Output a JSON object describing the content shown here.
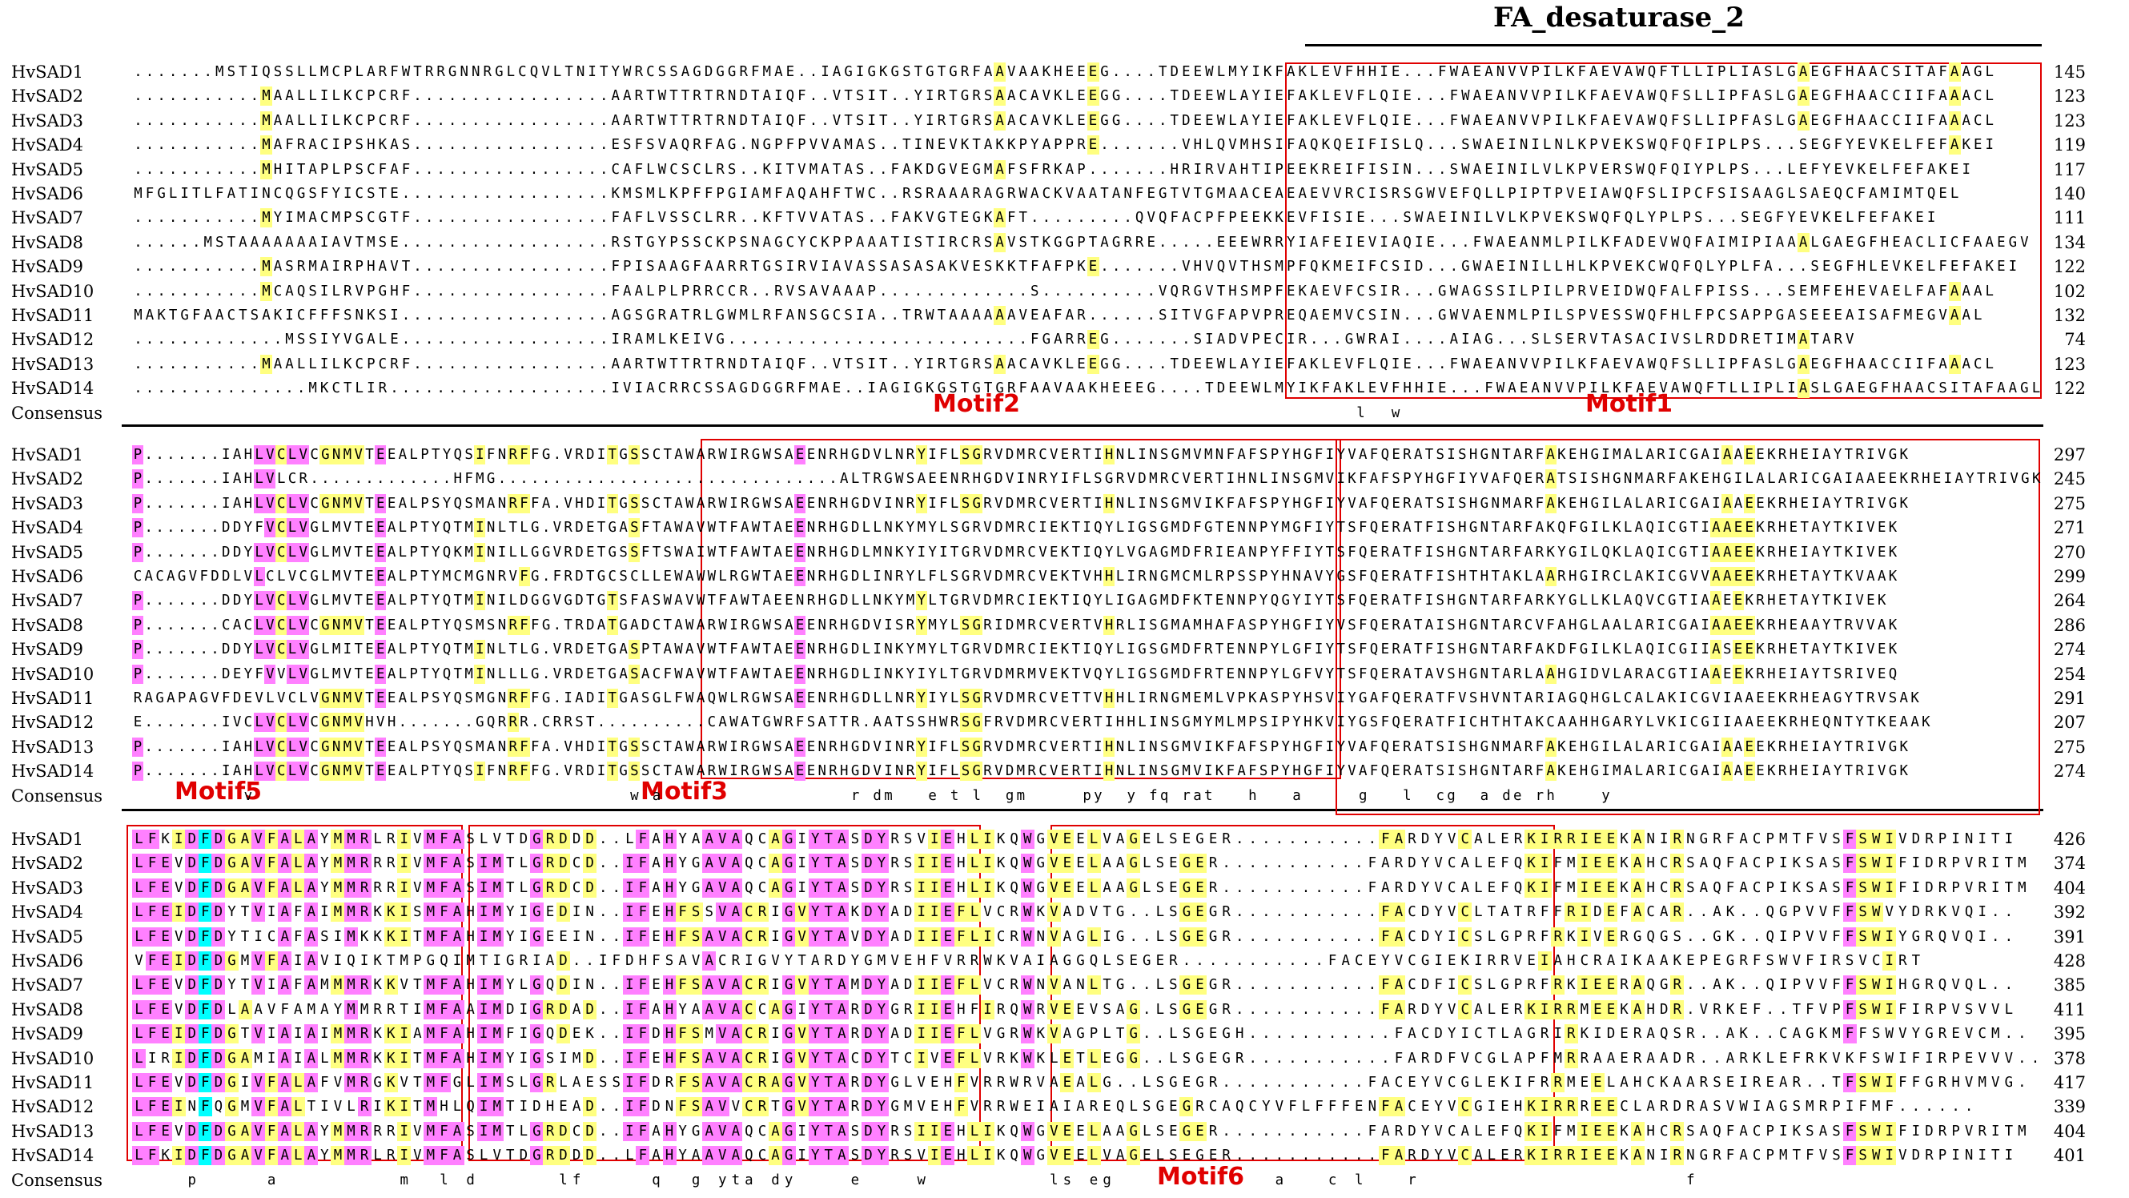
{
  "domain_label": "FA_desaturase_2",
  "consensus_label": "Consensus",
  "colors": {
    "conserved_100": "#00ffff",
    "conserved_75": "#ff80ff",
    "conserved_50": "#ffff80",
    "motif_box": "#e00000"
  },
  "blocks": [
    {
      "names": [
        "HvSAD1",
        "HvSAD2",
        "HvSAD3",
        "HvSAD4",
        "HvSAD5",
        "HvSAD6",
        "HvSAD7",
        "HvSAD8",
        "HvSAD9",
        "HvSAD10",
        "HvSAD11",
        "HvSAD12",
        "HvSAD13",
        "HvSAD14"
      ],
      "numbers": [
        "145",
        "123",
        "123",
        "119",
        "117",
        "140",
        "111",
        "134",
        "122",
        "102",
        "132",
        "74",
        "123",
        "122"
      ],
      "seqs": [
        ".......MSTIQSSLLMCPLARFWTRRGNNRGLCQVLTNITYWRCSSAGDGGRFMAE..IAGIGKGSTGTGRFAAVAAKHEEEG....TDEEWLMYIKFAKLEVFHHIE...FWAEANVVPILKFAEVAWQFTLLIPLIASLGAEGFHAACSITAFAAGL",
        "...........MAALLILKCPCRF.................AARTWTTRTRNDTAIQF..VTSIT..YIRTGRSAACAVKLEEGG....TDEEWLAYIEFAKLEVFLQIE...FWAEANVVPILKFAEVAWQFSLLIPFASLGAEGFHAACCIIFAAACL",
        "...........MAALLILKCPCRF.................AARTWTTRTRNDTAIQF..VTSIT..YIRTGRSAACAVKLEEGG....TDEEWLAYIEFAKLEVFLQIE...FWAEANVVPILKFAEVAWQFSLLIPFASLGAEGFHAACCIIFAAACL",
        "...........MAFRACIPSHKAS.................ESFSVAQRFAG.NGPFPVVAMAS..TINEVKTAKKPYAPPRE.......VHLQVMHSIFAQKQEIFISLQ...SWAEINILNLKPVEKSWQFQFIPLPS...SEGFYEVKELFEFAKEI",
        "...........MHITAPLPSCFAF.................CAFLWCSCLRS..KITVMATAS..FAKDGVEGMAFSFRKAP.......HRIRVAHTIPEEKREIFISIN...SWAEINILVLKPVERSWQFQIYPLPS...LEFYEVKELFEFAKEI",
        "MFGLITLFATINCQGSFYICSTE..................KMSMLKPFFPGIAMFAQAHFTWC..RSRAAARAGRWACKVAATANFEGTVTGMAACEAEAEVVRCISRSGWVEFQLLPIPTPVEIAWQFSLIPCFSISAAGLSAEQCFAMIMTQEL",
        "...........MYIMACMPSCGTF.................FAFLVSSCLRR..KFTVVATAS..FAKVGTEGKAFT.........QVQFACPFPEEKKEVFISIE...SWAEINILVLKPVEKSWQFQLYPLPS...SEGFYEVKELFEFAKEI",
        "......MSTAAAAAAAIAVTMSE..................RSTGYPSSCKPSNAGCYCKPPAAATISTIRCRSAVSTKGGPTAGRRE.....EEEWRRYIAFEIEVIAQIE...FWAEANMLPILKFADEVWQFAIMIPIAAALGAEGFHEACLICFAAEGV",
        "...........MASRMAIRPHAVT.................FPISAAGFAARRTGSIRVIAVASSASASAKVESKKTFAFPKE.......VHVQVTHSMPFQKMEIFCSID...GWAEINILLHLKPVEKCWQFQLYPLFA...SEGFHLEVKELFEFAKEI",
        "...........MCAQSILRVPGHF.................FAALPLPRRCCR..RVSAVAAAP.............S..........VQRGVTHSMPFEKAEVFCSIR...GWAGSSILPILPRVEIDWQFALFPISS...SEMFEHEVAELFAFAAAL",
        "MAKTGFAACTSAKICFFFSNKSI..................AGSGRATRLGWMLRFANSGCSIA..TRWTAAAAAAVEAFAR......SITVGFAPVPREQAEMVCSIN...GWVAENMLPILSPVESSWQFHLFPCSAPPGASEEEAISAFMEGVAAL",
        ".............MSSIYVGALE..................IRAMLKEIVG..........................FGARREG.......SIADVPECIR...GWRAI....AIAG...SLSERVTASACIVSLRDDRETIMATARV",
        "...........MAALLILKCPCRF.................AARTWTTRTRNDTAIQF..VTSIT..YIRTGRSAACAVKLEEGG....TDEEWLAYIEFAKLEVFLQIE...FWAEANVVPILKFAEVAWQFSLLIPFASLGAEGFHAACCIIFAAACL",
        "...............MKCTLIR...................IVIACRRCSSAGDGGRFMAE..IAGIGKGSTGTGRFAAVAAKHEEEG....TDEEWLMYIKFAKLEVFHHIE...FWAEANVVPILKFAEVAWQFTLLIPLIASLGAEGFHAACSITAFAAGL"
      ],
      "consensus": "                                                                                                         l  w                                         ",
      "motifs": [
        "Motif2",
        "Motif1"
      ]
    },
    {
      "names": [
        "HvSAD1",
        "HvSAD2",
        "HvSAD3",
        "HvSAD4",
        "HvSAD5",
        "HvSAD6",
        "HvSAD7",
        "HvSAD8",
        "HvSAD9",
        "HvSAD10",
        "HvSAD11",
        "HvSAD12",
        "HvSAD13",
        "HvSAD14"
      ],
      "numbers": [
        "297",
        "245",
        "275",
        "271",
        "270",
        "299",
        "264",
        "286",
        "274",
        "254",
        "291",
        "207",
        "275",
        "274"
      ],
      "seqs": [
        "P.......IAHLVCLVCGNMVTEEALPTYQSIFNRFFG.VRDITGSSCTAWARWIRGWSAEENRHGDVLNRYIFLSGRVDMRCVERTIHNLINSGMVMNFAFSPYHGFIYVAFQERATSISHGNTARFAKEHGIMALARICGAIAAEEKRHEIAYTRIVGK",
        "P.......IAHLVLCR.............HFMG...............................ALTRGWSAEENRHGDVINRYIFLSGRVDMRCVERTIHNLINSGMVIKFAFSPYHGFIYVAFQERATSISHGNMARFAKEHGILALARICGAIAAEEKRHEIAYTRIVGK",
        "P.......IAHLVCLVCGNMVTEEALPSYQSMANRFFA.VHDITGSSCTAWARWIRGWSAEENRHGDVINRYIFLSGRVDMRCVERTIHNLINSGMVIKFAFSPYHGFIYVAFQERATSISHGNMARFAKEHGILALARICGAIAAEEKRHEIAYTRIVGK",
        "P.......DDYFVCLVGLMVTEEALPTYQTMINLTLG.VRDETGASFTAWAVWTFAWTAEENRHGDLLNKYMYLSGRVDMRCIEKTIQYLIGSGMDFGTENNPYMGFIYTSFQERATFISHGNTARFAKQFGILKLAQICGTIAAEEKRHETAYTKIVEK",
        "P.......DDYLVCLVGLMVTEEALPTYQKMINILLGGVRDETGSSFTSWAIWTFAWTAEENRHGDLMNKYIYITGRVDMRCVEKTIQYLVGAGMDFRIEANPYFFIYTSFQERATFISHGNTARFARKYGILQKLAQICGTIAAEEKRHEIAYTKIVEK",
        "CACAGVFDDLVLCLVCGLMVTEEALPTYMCMGNRVFG.FRDTGCSCLLEWAWWLRGWTAEENRHGDLINRYLFLSGRVDMRCVEKTVHHLIRNGMCMLRPSSPYHNAVYGSFQERATFISHTHTAKLAARHGIRCLAKICGVVAAEEKRHETAYTKVAAK",
        "P.......DDYLVCLVGLMVTEEALPTYQTMINILDGGVGDTGTSFASWAVWTFAWTAEENRHGDLLNKYMYLTGRVDMRCIEKTIQYLIGAGMDFKTENNPYQGYIYTSFQERATFISHGNTARFARKYGLLKLAQVCGTIAAEEKRHETAYTKIVEK",
        "P.......CACLVCLVCGNMVTEEALPTYQSMSNRFFG.TRDATGADCTAWARWIRGWSAEENRHGDVISRYMYLSGRIDMRCVERTVHRLISGMAMHAFASPYHGFIYVSFQERATAISHGNTARCVFAHGLAALARICGAIAAEEKRHEAAYTRVVAK",
        "P.......DDYLVCLVGLMITEEALPTYQTMINLTLG.VRDETGASPTAWAVWTFAWTAEENRHGDLINKYMYLTGRVDMRCIEKTIQYLIGSGMDFRTENNPYLGFIYTSFQERATFISHGNTARFAKDFGILKLAQICGIIASEEKRHETAYTKIVEK",
        "P.......DEYFVVLVGLMVTEEALPTYQTMINLLLG.VRDETGASACFWAVWTFAWTAEENRHGDLINKYIYLTGRVDMRMVEKTVQYLIGSGMDFRTENNPYLGFVYTSFQERATAVSHGNTARLAAHGIDVLARACGTIAAEEKRHEIAYTSRIVEQ",
        "RAGAPAGVFDEVLVCLVGNMVTEEALPSYQSMGNRFFG.IADITGASGLFWAQWLRGWSAEENRHGDLLNRYIYLSGRVDMRCVETTVHHLIRNGMEMLVPKASPYHSVIYGAFQERATFVSHVNTARIAGQHGLCALAKICGVIAAEEKRHEAGYTRVSAK",
        "E.......IVCLVCLVCGNMVHVH.......GQRRR.CRRST..........CAWATGWRFSATTR.AATSSHWRSGFRVDMRCVERTIHHLINSGMYMLMPSIPYHKVIYGSFQERATFICHTHTAKCAAHHGARYLVKICGIIAAEEKRHEQNTYTKEAAK",
        "P.......IAHLVCLVCGNMVTEEALPSYQSMANRFFA.VHDITGSSCTAWARWIRGWSAEENRHGDVINRYIFLSGRVDMRCVERTIHNLINSGMVIKFAFSPYHGFIYVAFQERATSISHGNMARFAKEHGILALARICGAIAAEEKRHEIAYTRIVGK",
        "P.......IAHLVCLVCGNMVTEEALPTYQSIFNRFFG.VRDITGSSCTAWARWIRGWSAEENRHGDVINRYIFLSGRVDMRCVERTIHNLINSGMVIKFAFSPYHGFIYVAFQERATSISHGNTARFAKEHGIMALARICGAIAAEEKRHEIAYTRIVGK"
      ],
      "consensus": "          v                                  w a                 r dm   e t l  gm     py  y fq rat   h   a     g   l  cg  a de rh    y        ",
      "motifs": [
        "Motif5",
        "Motif3"
      ]
    },
    {
      "names": [
        "HvSAD1",
        "HvSAD2",
        "HvSAD3",
        "HvSAD4",
        "HvSAD5",
        "HvSAD6",
        "HvSAD7",
        "HvSAD8",
        "HvSAD9",
        "HvSAD10",
        "HvSAD11",
        "HvSAD12",
        "HvSAD13",
        "HvSAD14"
      ],
      "numbers": [
        "426",
        "374",
        "404",
        "392",
        "391",
        "428",
        "385",
        "411",
        "395",
        "378",
        "417",
        "339",
        "404",
        "401"
      ],
      "seqs": [
        "LFKIDFDGAVFALAYMMRLRIVMFASLVTDGRDDD..LFAHYAAVAQCAGIYTASDYRSVIEHLIKQWGVEELVAGELSEGER...........FARDYVCALERKIRRIEEKANIRNGRFACPMTFVSFSWIVDRPINITI",
        "LFEVDFDGAVFALAYMMRRRIVMFASIMTLGRDCD..IFAHYGAVAQCAGIYTASDYRSIIEHLIKQWGVEELAAGLSEGER...........FARDYVCALEFQKIFMIEEKAHCRSAQFACPIKSASFSWIFIDRPVRITM",
        "LFEVDFDGAVFALAYMMRRRIVMFASIMTLGRDCD..IFAHYGAVAQCAGIYTASDYRSIIEHLIKQWGVEELAAGLSEGER...........FARDYVCALEFQKIFMIEEKAHCRSAQFACPIKSASFSWIFIDRPVRITM",
        "LFEIDFDYTVIAFAIMMRKKISMFAHIMYIGEDIN..IFEHFSSVACRIGVYTAKDYADIIEFLVCRWKVADVTG..LSGEGR...........FACDYVCLTATRFFRIDEFACAR..AK..QGPVVFFSWVYDRKVQI..",
        "LFEVDFDYTICAFASIMKKKITMFAHIMYIGEEIN..IFEHFSAVACRIGVYTAVDYADIIEFLICRWNVAGLIG..LSGEGR...........FACDYICSLGPRFRKIVERGQGS..GK..QIPVVFFSWIYGRQVQI..",
        "VFEIDFDGMVFAIAVIQIKTMPGQIMTIGRIAD..IFDHFSAVACRIGVYTARDYGMVEHFVRRWKVAIAGGQLSEGER...........FACEYVCGIEKIRRVEIAHCRAIKAAKEPEGRFSWVFIRSVCIRT",
        "LFEVDFDYTVIAFAMMMRKKVTMFAHIMYLGQDIN..IFEHFSAVACRIGVYTAMDYADIIEFLVCRWNVANLTG..LSGEGR...........FACDFICSLGPRFRKIEERAQGR..AK..QIPVVFFSWIHGRQVQL..",
        "LFEVDFDLAAVFAMAYMMRRTIMFAAIMDIGRDAD..IFAHYAAVACCAGIYTARDYGRIIEHFIRQWRVEEVSAG.LSGEGR...........FARDYVCALERKIRRMEEKAHDR.VRKEF..TFVPFSWIFIRPVSVVL",
        "LFEIDFDGTVIAIAIMMRKKIAMFAHIMFIGQDEK..IFDHFSMVACRIGVYTARDYADIIEFLVGRWKVAGPLTG..LSGEGH...........FACDYICTLAGRIRKIDERAQSR..AK..CAGKMFFSWVYGREVCM..",
        "LIRIDFDGAMIAIALMMRKKITMFAHIMYIGSIMD..IFEHFSAVACRIGVYTACDYTCIVEFLVRKWKLETLEGG..LSGEGR...........FARDFVCGLAPFMRRAAERAADR..ARKLEFRKVKFSWIFIRPEVVV..",
        "LFEVDFDGIVFALAFVMRGKVTMFGLIMSLGRLAESSIFDRFSAVACRAGVYTARDYGLVEHFVRRWRVAEALG..LSGEGR...........FACEYVCGLEKIFRRMEELAHCKAARSEIREAR..TFSWIFFGRHVMVG.",
        "LFEINFQGMVFALTIVLRIKITMHLQIMTIDHEAD..IFDNFSAVVCRTGVYTARDYGMVEHFVRRWEIAIAREQLSGEGRCAQCYVFLFFFENFACEYVCGIEHKIRRREECLARDRASVWIAGSMRPIFMF......",
        "LFEVDFDGAVFALAYMMRRRIVMFASIMTLGRDCD..IFAHYGAVAQCAGIYTASDYRSIIEHLIKQWGVEELAAGLSEGER...........FARDYVCALEFQKIFMIEEKAHCRSAQFACPIKSASFSWIFIDRPVRITM",
        "LFKIDFDGAVFALAYMMRLRIVMFASLVTDGRDDD..LFAHYAAVAQCAGIYTASDYRSVIEHLIKQWGVEELVAGELSEGER...........FARDYVCALERKIRRIEEKANIRNGRFACPMTFVSFSWIVDRPINITI"
      ],
      "consensus": "    p     a         m  l d      lf     q  g yta dy    e    w         ls eg            a   c l   r                    f            ",
      "motifs": [
        "Motif6"
      ]
    }
  ]
}
